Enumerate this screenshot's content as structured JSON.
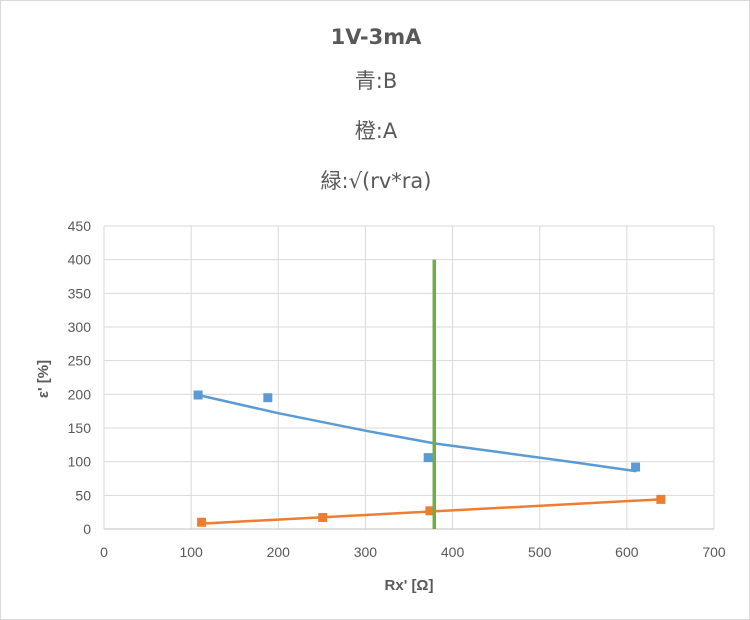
{
  "chart_data": {
    "type": "scatter",
    "title": "1V-3mA",
    "subtitles": [
      "青:B",
      "橙:A",
      "緑:√(rv*ra)"
    ],
    "xlabel": "Rx' [Ω]",
    "ylabel": "ε' [%]",
    "xlim": [
      0,
      700
    ],
    "ylim": [
      0,
      450
    ],
    "xticks": [
      0,
      100,
      200,
      300,
      400,
      500,
      600,
      700
    ],
    "yticks": [
      0,
      50,
      100,
      150,
      200,
      250,
      300,
      350,
      400,
      450
    ],
    "grid": true,
    "legend": "none",
    "series": [
      {
        "color": "#5b9bd5",
        "marker": "square",
        "points": [
          [
            108,
            199
          ],
          [
            188,
            195
          ],
          [
            372,
            106
          ],
          [
            610,
            92
          ]
        ],
        "trendline": {
          "kind": "curve",
          "points": [
            [
              108,
              199
            ],
            [
              200,
              172
            ],
            [
              300,
              146
            ],
            [
              380,
              127
            ],
            [
              460,
              113
            ],
            [
              540,
              99
            ],
            [
              610,
              86
            ]
          ]
        }
      },
      {
        "color": "#ed7d31",
        "marker": "square",
        "points": [
          [
            112,
            10
          ],
          [
            251,
            17
          ],
          [
            374,
            27
          ],
          [
            639,
            44
          ]
        ],
        "trendline": {
          "kind": "linear",
          "points": [
            [
              112,
              8
            ],
            [
              639,
              44
            ]
          ]
        }
      },
      {
        "color": "#70ad47",
        "marker": "none",
        "line": {
          "points": [
            [
              379,
              0
            ],
            [
              379,
              400
            ]
          ]
        }
      }
    ]
  }
}
